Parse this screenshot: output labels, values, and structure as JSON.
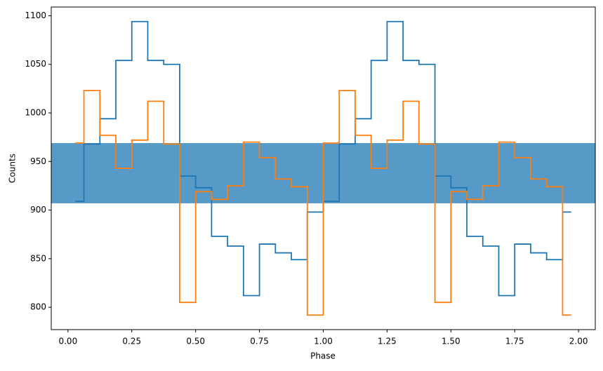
{
  "chart_data": {
    "type": "step",
    "xlabel": "Phase",
    "ylabel": "Counts",
    "x": [
      0.03125,
      0.09375,
      0.15625,
      0.21875,
      0.28125,
      0.34375,
      0.40625,
      0.46875,
      0.53125,
      0.59375,
      0.65625,
      0.71875,
      0.78125,
      0.84375,
      0.90625,
      0.96875,
      1.03125,
      1.09375,
      1.15625,
      1.21875,
      1.28125,
      1.34375,
      1.40625,
      1.46875,
      1.53125,
      1.59375,
      1.65625,
      1.71875,
      1.78125,
      1.84375,
      1.90625,
      1.96875
    ],
    "series": [
      {
        "color": "#1f77b4",
        "values": [
          909,
          968,
          994,
          1054,
          1094,
          1054,
          1050,
          935,
          923,
          873,
          863,
          812,
          865,
          856,
          849,
          898,
          909,
          968,
          994,
          1054,
          1094,
          1054,
          1050,
          935,
          923,
          873,
          863,
          812,
          865,
          856,
          849,
          898
        ]
      },
      {
        "color": "#ff7f0e",
        "values": [
          969,
          1023,
          977,
          943,
          972,
          1012,
          968,
          805,
          919,
          911,
          925,
          970,
          954,
          932,
          924,
          792,
          969,
          1023,
          977,
          943,
          972,
          1012,
          968,
          805,
          919,
          911,
          925,
          970,
          954,
          932,
          924,
          792
        ]
      }
    ],
    "span": {
      "ymin": 907,
      "ymax": 969,
      "color": "#1f77b4",
      "opacity": 0.75
    },
    "xlim": [
      -0.0656,
      2.0656
    ],
    "xticks": [
      {
        "value": 0,
        "label": "0.00"
      },
      {
        "value": 0.25,
        "label": "0.25"
      },
      {
        "value": 0.5,
        "label": "0.50"
      },
      {
        "value": 0.75,
        "label": "0.75"
      },
      {
        "value": 1,
        "label": "1.00"
      },
      {
        "value": 1.25,
        "label": "1.25"
      },
      {
        "value": 1.5,
        "label": "1.50"
      },
      {
        "value": 1.75,
        "label": "1.75"
      },
      {
        "value": 2,
        "label": "2.00"
      }
    ],
    "ylim": [
      777,
      1109
    ],
    "yticks": [
      800,
      850,
      900,
      950,
      1000,
      1050,
      1100
    ],
    "grid": false
  }
}
